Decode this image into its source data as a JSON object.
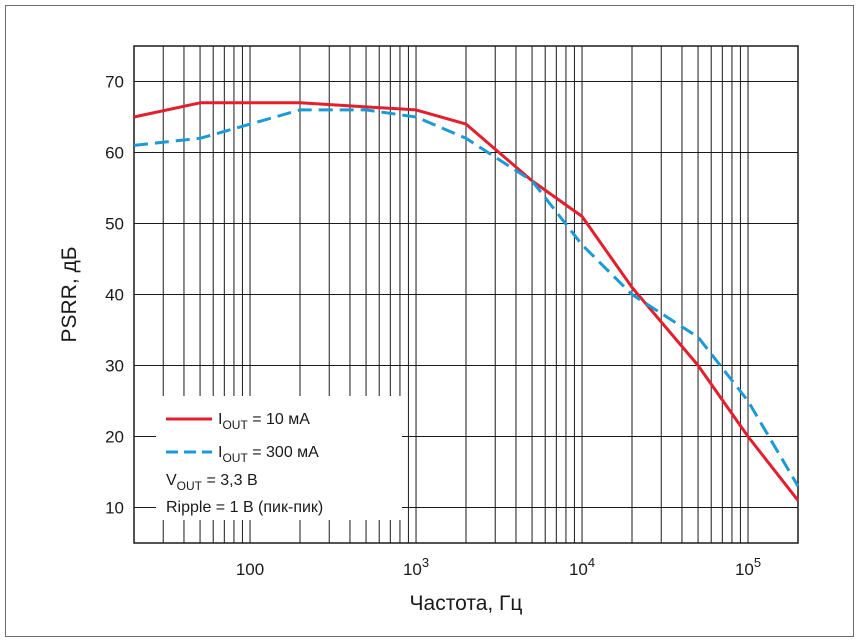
{
  "chart_data": {
    "type": "line",
    "xscale": "log",
    "xlim": [
      20,
      200000
    ],
    "ylim": [
      5,
      75
    ],
    "grid": true,
    "xlabel": "Частота, Гц",
    "ylabel": "PSRR, дБ",
    "y_ticks": [
      "10",
      "20",
      "30",
      "40",
      "50",
      "60",
      "70"
    ],
    "x_ticks": [
      {
        "value": 100,
        "base": "100",
        "exp": ""
      },
      {
        "value": 1000,
        "base": "10",
        "exp": "3"
      },
      {
        "value": 10000,
        "base": "10",
        "exp": "4"
      },
      {
        "value": 100000,
        "base": "10",
        "exp": "5"
      }
    ],
    "series": [
      {
        "name_main": "I",
        "name_sub": "OUT",
        "name_rest": " = 10 мА",
        "color": "#e31e2d",
        "style": "solid",
        "points": [
          [
            20,
            65
          ],
          [
            50,
            67
          ],
          [
            200,
            67
          ],
          [
            1000,
            66
          ],
          [
            2000,
            64
          ],
          [
            5000,
            56
          ],
          [
            10000,
            51
          ],
          [
            20000,
            41
          ],
          [
            50000,
            30
          ],
          [
            100000,
            20
          ],
          [
            200000,
            11
          ]
        ]
      },
      {
        "name_main": "I",
        "name_sub": "OUT",
        "name_rest": " = 300 мА",
        "color": "#1a9ad6",
        "style": "dashed",
        "points": [
          [
            20,
            61
          ],
          [
            50,
            62
          ],
          [
            200,
            66
          ],
          [
            500,
            66
          ],
          [
            1000,
            65
          ],
          [
            2000,
            62
          ],
          [
            5000,
            56
          ],
          [
            10000,
            47
          ],
          [
            20000,
            40
          ],
          [
            50000,
            34
          ],
          [
            100000,
            25
          ],
          [
            200000,
            13
          ]
        ]
      }
    ],
    "notes": {
      "vout_main": "V",
      "vout_sub": "OUT",
      "vout_rest": " = 3,3 В",
      "ripple": "Ripple = 1 В (пик-пик)"
    }
  }
}
